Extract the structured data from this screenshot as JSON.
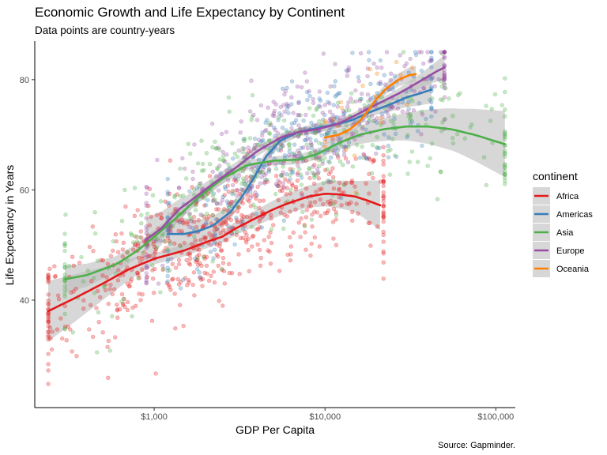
{
  "chart_data": {
    "type": "scatter",
    "title": "Economic Growth and Life Expectancy by Continent",
    "subtitle": "Data points are country-years",
    "xlabel": "GDP Per Capita",
    "ylabel": "Life Expectancy in Years",
    "caption": "Source: Gapminder.",
    "x_scale": "log10",
    "xlim": [
      200,
      130000
    ],
    "ylim": [
      20.5,
      87
    ],
    "x_ticks": [
      {
        "value": 1000,
        "label": "$1,000"
      },
      {
        "value": 10000,
        "label": "$10,000"
      },
      {
        "value": 100000,
        "label": "$100,000"
      }
    ],
    "y_ticks": [
      {
        "value": 40,
        "label": "40"
      },
      {
        "value": 60,
        "label": "60"
      },
      {
        "value": 80,
        "label": "80"
      }
    ],
    "grid": false,
    "legend": {
      "title": "continent",
      "position": "right"
    },
    "point_alpha": 0.3,
    "ribbon_color": "#bdbdbd",
    "series": [
      {
        "name": "Africa",
        "color": "#e41a1c",
        "points_summary": {
          "n": 624,
          "x_range": [
            240,
            22000
          ],
          "y_center_range": [
            38,
            59
          ]
        },
        "smooth": [
          [
            240,
            38.0
          ],
          [
            350,
            40.5
          ],
          [
            500,
            43.0
          ],
          [
            700,
            45.5
          ],
          [
            1000,
            47.5
          ],
          [
            1500,
            49.0
          ],
          [
            2000,
            50.5
          ],
          [
            2500,
            51.5
          ],
          [
            3000,
            53.0
          ],
          [
            4000,
            55.0
          ],
          [
            5000,
            56.5
          ],
          [
            6000,
            57.5
          ],
          [
            8000,
            58.8
          ],
          [
            10000,
            59.3
          ],
          [
            12000,
            59.2
          ],
          [
            15000,
            58.8
          ],
          [
            18000,
            58.0
          ],
          [
            21000,
            57.2
          ]
        ],
        "ribbon_halfwidth": [
          [
            240,
            5.5
          ],
          [
            500,
            3.0
          ],
          [
            1000,
            1.0
          ],
          [
            3000,
            1.2
          ],
          [
            8000,
            2.0
          ],
          [
            15000,
            2.8
          ],
          [
            21000,
            4.5
          ]
        ]
      },
      {
        "name": "Americas",
        "color": "#377eb8",
        "points_summary": {
          "n": 300,
          "x_range": [
            1200,
            42000
          ],
          "y_center_range": [
            52,
            78
          ]
        },
        "smooth": [
          [
            1200,
            52.0
          ],
          [
            1500,
            52.0
          ],
          [
            1800,
            52.5
          ],
          [
            2200,
            53.5
          ],
          [
            2800,
            56.0
          ],
          [
            3300,
            59.0
          ],
          [
            3800,
            62.0
          ],
          [
            4500,
            66.0
          ],
          [
            5500,
            69.0
          ],
          [
            7000,
            70.5
          ],
          [
            10000,
            71.5
          ],
          [
            14000,
            72.5
          ],
          [
            18000,
            74.0
          ],
          [
            24000,
            75.5
          ],
          [
            30000,
            76.8
          ],
          [
            36000,
            77.5
          ],
          [
            42000,
            78.2
          ]
        ],
        "ribbon_halfwidth": [
          [
            1200,
            4.0
          ],
          [
            1800,
            2.0
          ],
          [
            3000,
            1.2
          ],
          [
            7000,
            0.8
          ],
          [
            20000,
            0.9
          ],
          [
            42000,
            2.5
          ]
        ]
      },
      {
        "name": "Asia",
        "color": "#4daf4a",
        "points_summary": {
          "n": 396,
          "x_range": [
            300,
            113000
          ],
          "y_center_range": [
            43,
            72
          ]
        },
        "smooth": [
          [
            300,
            43.8
          ],
          [
            400,
            44.5
          ],
          [
            600,
            46.5
          ],
          [
            800,
            49.0
          ],
          [
            1000,
            51.5
          ],
          [
            1300,
            54.5
          ],
          [
            1800,
            58.5
          ],
          [
            2500,
            62.0
          ],
          [
            3500,
            64.5
          ],
          [
            5000,
            65.3
          ],
          [
            7000,
            65.5
          ],
          [
            9000,
            66.5
          ],
          [
            12000,
            68.5
          ],
          [
            16000,
            70.0
          ],
          [
            22000,
            71.0
          ],
          [
            30000,
            71.5
          ],
          [
            40000,
            71.5
          ],
          [
            55000,
            71.0
          ],
          [
            75000,
            70.0
          ],
          [
            100000,
            68.8
          ],
          [
            113000,
            68.3
          ]
        ],
        "ribbon_halfwidth": [
          [
            300,
            2.5
          ],
          [
            600,
            1.5
          ],
          [
            1500,
            1.0
          ],
          [
            5000,
            0.8
          ],
          [
            10000,
            1.0
          ],
          [
            30000,
            2.5
          ],
          [
            60000,
            4.0
          ],
          [
            113000,
            6.0
          ]
        ]
      },
      {
        "name": "Europe",
        "color": "#984ea3",
        "points_summary": {
          "n": 360,
          "x_range": [
            900,
            50000
          ],
          "y_center_range": [
            50,
            82
          ]
        },
        "smooth": [
          [
            900,
            51.0
          ],
          [
            1100,
            53.0
          ],
          [
            1400,
            56.5
          ],
          [
            1800,
            59.0
          ],
          [
            2300,
            61.5
          ],
          [
            3000,
            64.0
          ],
          [
            4000,
            67.0
          ],
          [
            5500,
            69.5
          ],
          [
            7000,
            70.5
          ],
          [
            9000,
            71.0
          ],
          [
            12000,
            72.0
          ],
          [
            15000,
            73.5
          ],
          [
            20000,
            75.5
          ],
          [
            27000,
            77.5
          ],
          [
            35000,
            79.5
          ],
          [
            45000,
            81.5
          ],
          [
            50000,
            82.2
          ]
        ],
        "ribbon_halfwidth": [
          [
            900,
            4.0
          ],
          [
            1500,
            1.5
          ],
          [
            3000,
            1.0
          ],
          [
            10000,
            0.6
          ],
          [
            25000,
            0.8
          ],
          [
            40000,
            1.5
          ],
          [
            50000,
            2.2
          ]
        ]
      },
      {
        "name": "Oceania",
        "color": "#ff7f00",
        "points_summary": {
          "n": 24,
          "x_range": [
            10000,
            34000
          ],
          "y_center_range": [
            69,
            81
          ]
        },
        "smooth": [
          [
            10000,
            69.5
          ],
          [
            12000,
            70.0
          ],
          [
            14000,
            71.0
          ],
          [
            16000,
            72.5
          ],
          [
            18000,
            74.5
          ],
          [
            20000,
            76.5
          ],
          [
            23000,
            78.5
          ],
          [
            27000,
            80.0
          ],
          [
            31000,
            80.8
          ],
          [
            34000,
            81.0
          ]
        ],
        "ribbon_halfwidth": [
          [
            10000,
            1.2
          ],
          [
            20000,
            0.8
          ],
          [
            34000,
            1.5
          ]
        ]
      }
    ]
  }
}
